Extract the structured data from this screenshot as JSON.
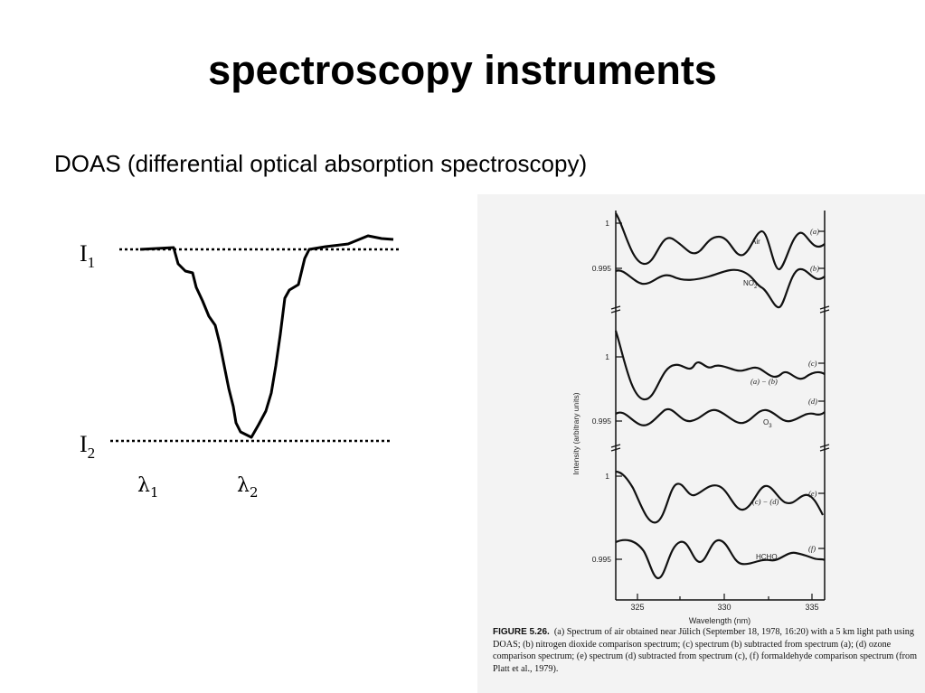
{
  "slide": {
    "title": "spectroscopy instruments",
    "subtitle": "DOAS (differential optical absorption spectroscopy)"
  },
  "diagram": {
    "i1_base": "I",
    "i1_sub": "1",
    "i2_base": "I",
    "i2_sub": "2",
    "l1_base": "λ",
    "l1_sub": "1",
    "l2_base": "λ",
    "l2_sub": "2"
  },
  "figure": {
    "y_axis_label": "Intensity (arbitrary units)",
    "x_axis_label": "Wavelength (nm)",
    "x_ticks": [
      "325",
      "330",
      "335"
    ],
    "tick_1a": "1",
    "tick_0995a": "0.995",
    "tick_1b": "1",
    "tick_0995b": "0.995",
    "tick_1c": "1",
    "tick_0995c": "0.995",
    "labels": {
      "air": "Air",
      "no2_base": "NO",
      "no2_sub": "2",
      "a_minus_b": "(a) − (b)",
      "o3_base": "O",
      "o3_sub": "3",
      "c_minus_d": "(c) − (d)",
      "hcho": "HCHO"
    },
    "tags": [
      "(a)",
      "(b)",
      "(c)",
      "(d)",
      "(e)",
      "(f)"
    ],
    "caption_head": "FIGURE 5.26.",
    "caption_text": "(a) Spectrum of air obtained near Jülich (September 18, 1978, 16:20) with a 5 km light path using DOAS; (b) nitrogen dioxide comparison spectrum; (c) spectrum (b) subtracted from spectrum (a); (d) ozone comparison spectrum; (e) spectrum (d) subtracted from spectrum (c), (f) formaldehyde comparison spectrum (from Platt et al., 1979)."
  }
}
